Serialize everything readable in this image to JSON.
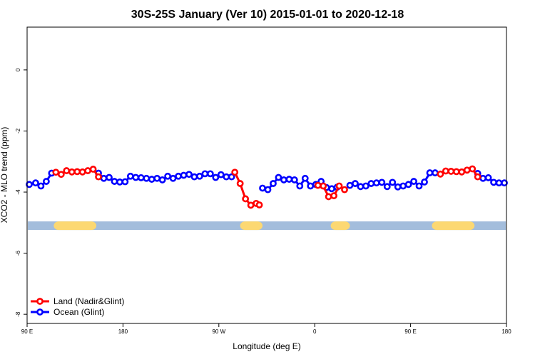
{
  "chart_data": {
    "type": "line",
    "title": "30S-25S January (Ver 10)   2015-01-01 to 2020-12-18",
    "xlabel": "Longitude (deg E)",
    "ylabel": "XCO2 - MLO trend (ppm)",
    "xlim": [
      90,
      540
    ],
    "ylim": [
      -8.3,
      1.4
    ],
    "x_ticks": [
      {
        "value": 90,
        "label": "90 E"
      },
      {
        "value": 180,
        "label": "180"
      },
      {
        "value": 270,
        "label": "90 W"
      },
      {
        "value": 360,
        "label": "0"
      },
      {
        "value": 450,
        "label": "90 E"
      },
      {
        "value": 540,
        "label": "180"
      }
    ],
    "y_ticks": [
      {
        "value": 0,
        "label": "0"
      },
      {
        "value": -2,
        "label": "-2"
      },
      {
        "value": -4,
        "label": "-4"
      },
      {
        "value": -6,
        "label": "-6"
      },
      {
        "value": -8,
        "label": "-8"
      }
    ],
    "grid": false,
    "legend_position": "bottom-left",
    "surface_band": {
      "y": -5.1,
      "colors": {
        "ocean": "#a3bddc",
        "land": "#fcd872"
      },
      "land_ranges": [
        [
          115,
          155
        ],
        [
          290,
          311
        ],
        [
          375,
          393
        ],
        [
          470,
          510
        ]
      ]
    },
    "series": [
      {
        "name": "Land (Nadir&Glint)",
        "color": "#ff0000",
        "x": [
          117,
          122,
          127,
          132,
          137,
          142,
          147,
          152,
          157,
          285,
          290,
          295,
          300,
          305,
          308,
          363,
          368,
          373,
          378,
          383,
          388,
          478,
          483,
          488,
          493,
          498,
          503,
          508,
          513
        ],
        "y": [
          -3.35,
          -3.42,
          -3.3,
          -3.34,
          -3.33,
          -3.34,
          -3.3,
          -3.25,
          -3.5,
          -3.35,
          -3.72,
          -4.22,
          -4.43,
          -4.37,
          -4.42,
          -3.78,
          -3.8,
          -4.15,
          -4.12,
          -3.8,
          -3.92,
          -3.41,
          -3.31,
          -3.32,
          -3.33,
          -3.34,
          -3.28,
          -3.24,
          -3.5
        ]
      },
      {
        "name": "Ocean (Glint)",
        "color": "#0000ff",
        "x": [
          92,
          98,
          103,
          108,
          113,
          157,
          162,
          167,
          172,
          177,
          182,
          187,
          192,
          197,
          202,
          207,
          212,
          217,
          222,
          227,
          232,
          237,
          242,
          247,
          252,
          257,
          262,
          267,
          272,
          277,
          282,
          311,
          316,
          321,
          326,
          331,
          336,
          341,
          346,
          351,
          356,
          361,
          366,
          371,
          376,
          381,
          393,
          398,
          403,
          408,
          413,
          418,
          423,
          428,
          433,
          438,
          443,
          448,
          453,
          458,
          463,
          468,
          473,
          513,
          518,
          523,
          528,
          533,
          538
        ],
        "y": [
          -3.75,
          -3.7,
          -3.8,
          -3.65,
          -3.38,
          -3.38,
          -3.55,
          -3.52,
          -3.65,
          -3.67,
          -3.66,
          -3.48,
          -3.52,
          -3.53,
          -3.55,
          -3.58,
          -3.55,
          -3.6,
          -3.48,
          -3.55,
          -3.48,
          -3.45,
          -3.42,
          -3.5,
          -3.48,
          -3.4,
          -3.4,
          -3.52,
          -3.43,
          -3.5,
          -3.5,
          -3.87,
          -3.92,
          -3.72,
          -3.52,
          -3.6,
          -3.58,
          -3.6,
          -3.8,
          -3.55,
          -3.8,
          -3.75,
          -3.65,
          -3.85,
          -3.89,
          -3.84,
          -3.78,
          -3.72,
          -3.82,
          -3.8,
          -3.72,
          -3.7,
          -3.68,
          -3.82,
          -3.68,
          -3.83,
          -3.8,
          -3.75,
          -3.65,
          -3.8,
          -3.67,
          -3.37,
          -3.37,
          -3.39,
          -3.55,
          -3.53,
          -3.68,
          -3.7,
          -3.7
        ]
      }
    ],
    "legend": [
      "Land (Nadir&Glint)",
      "Ocean (Glint)"
    ]
  }
}
